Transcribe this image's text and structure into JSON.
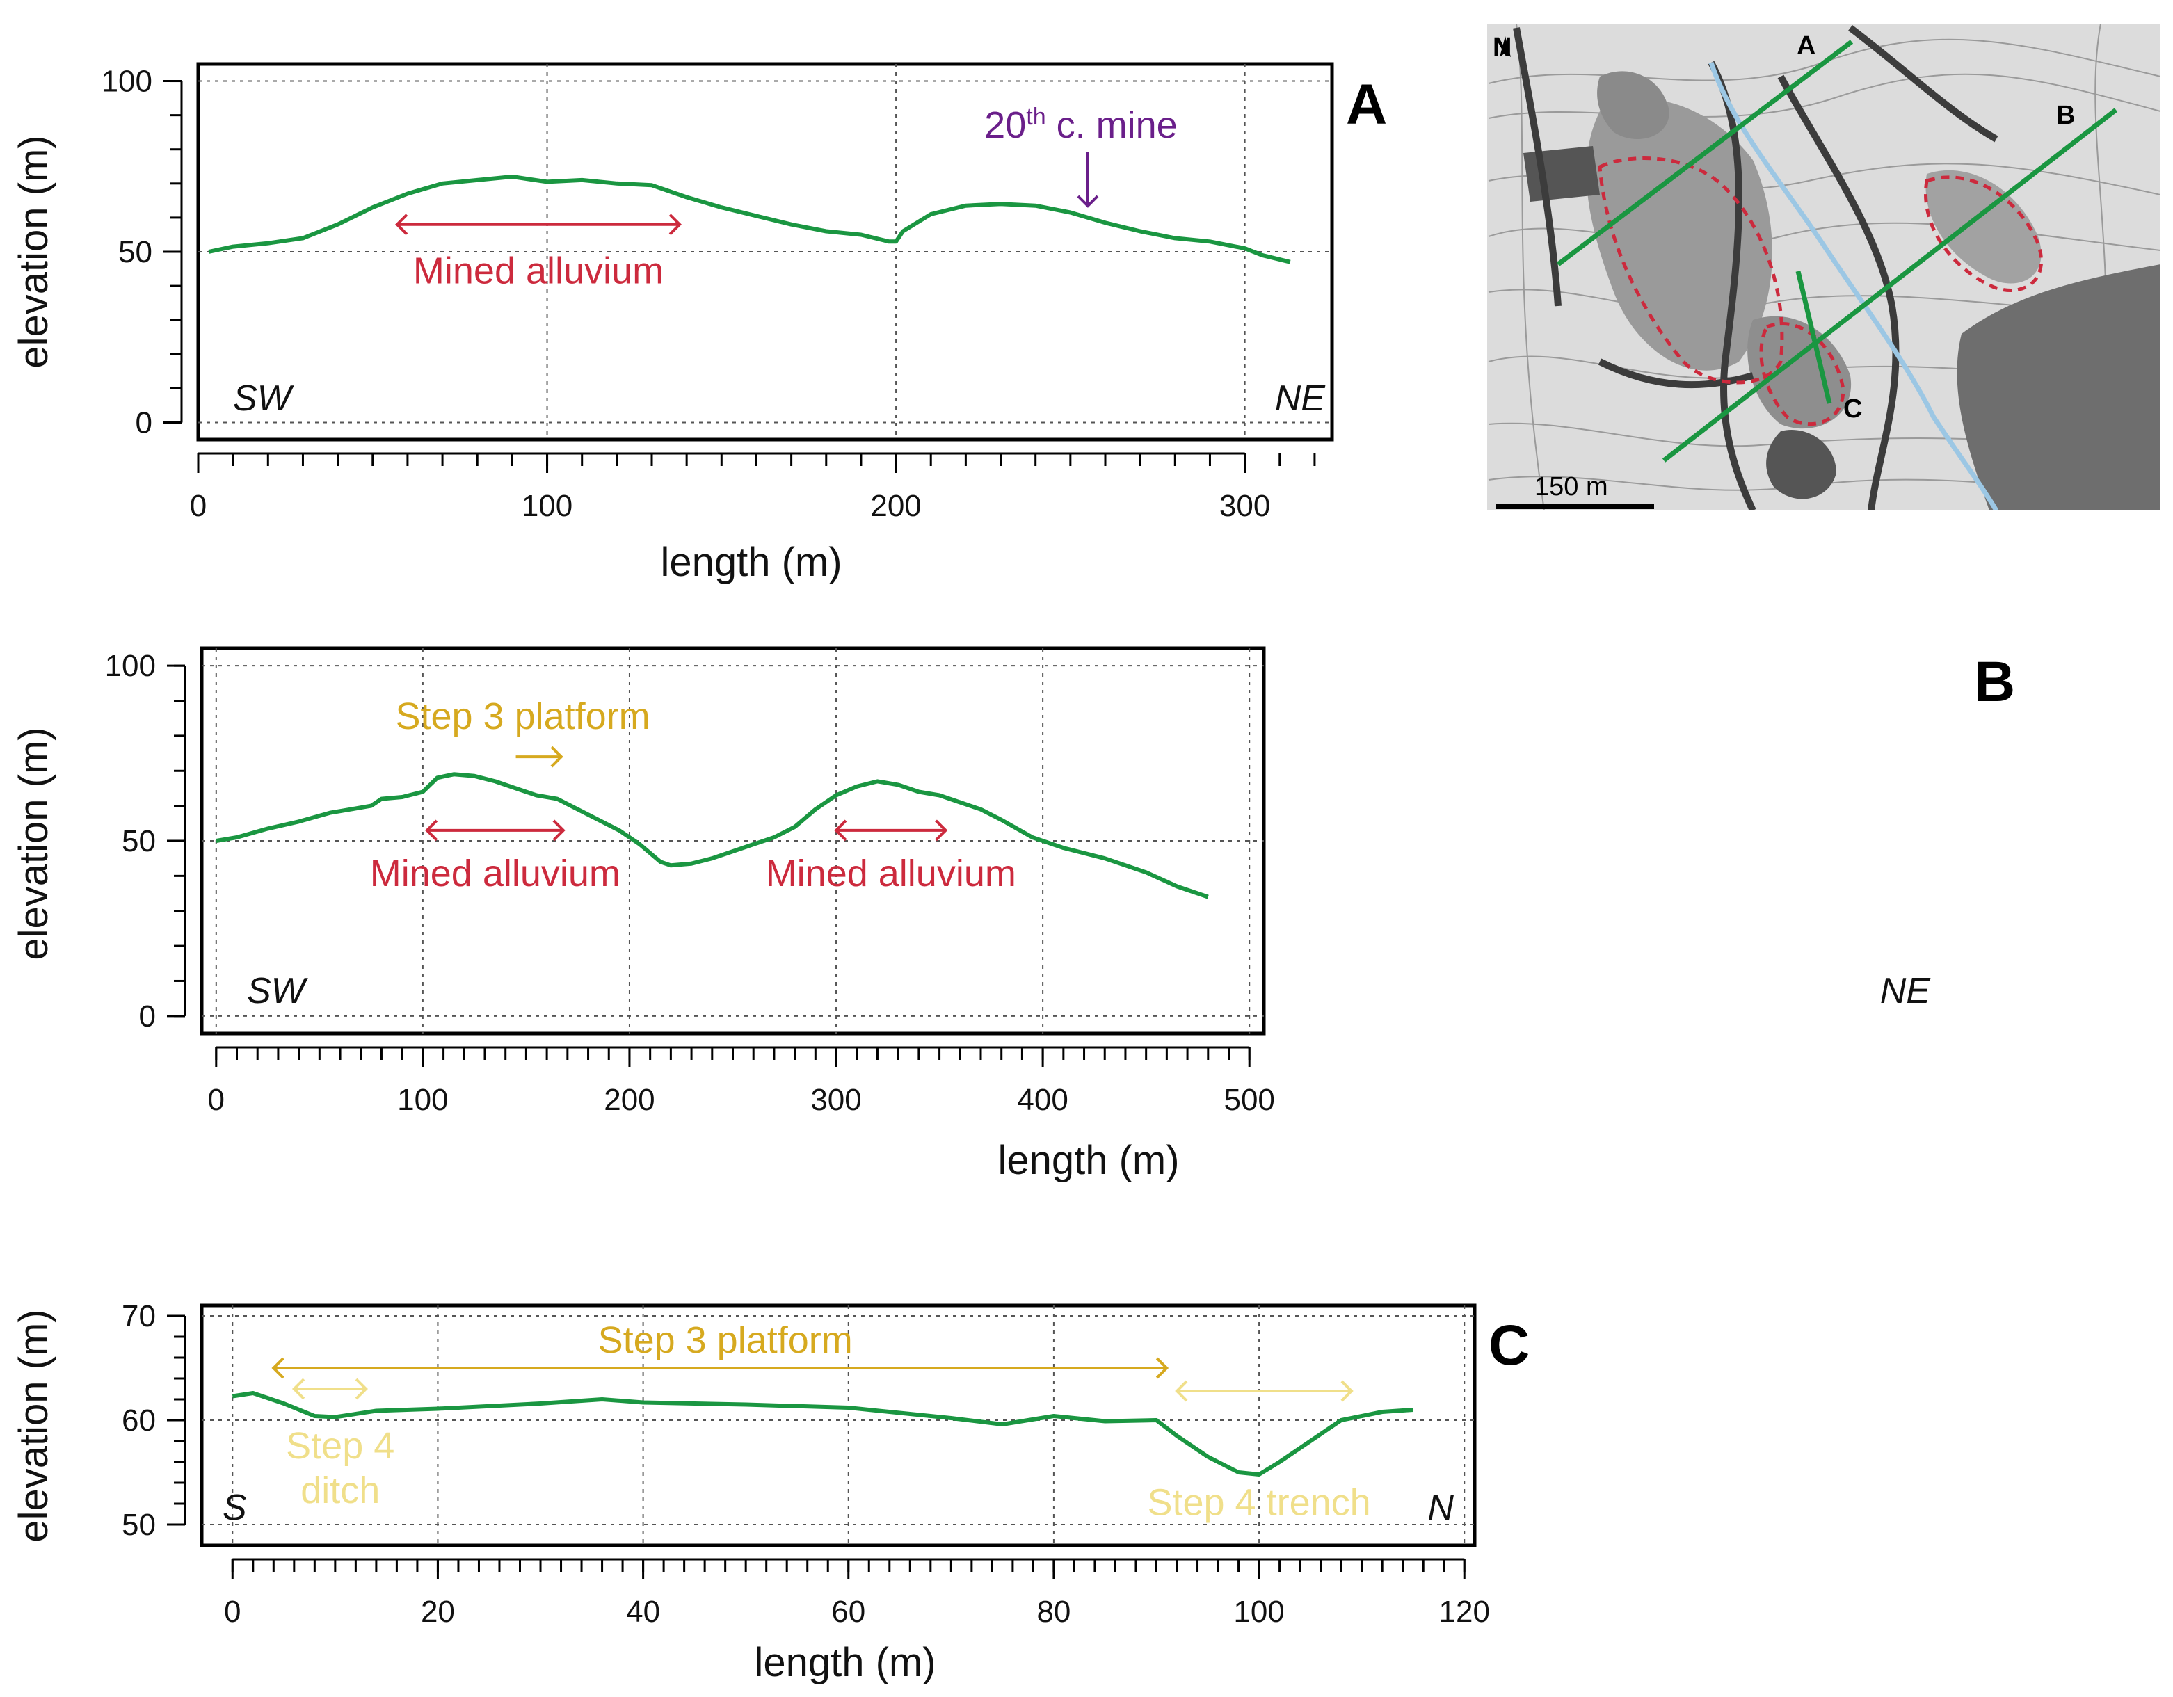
{
  "colors": {
    "profile": "#1a9641",
    "mined": "#cc2a3d",
    "step3": "#d6a91f",
    "step4": "#f0df8a",
    "mine20": "#6a1f8a",
    "river": "#9cc7e4"
  },
  "chart_data": [
    {
      "type": "line",
      "panel": "A",
      "xlabel": "length (m)",
      "ylabel": "elevation (m)",
      "xlim": [
        0,
        325
      ],
      "ylim": [
        -5,
        105
      ],
      "xticks": [
        0,
        100,
        200,
        300
      ],
      "yticks": [
        0,
        50,
        100
      ],
      "grid": true,
      "direction_left": "SW",
      "direction_right": "NE",
      "series": [
        {
          "x": [
            3,
            10,
            20,
            30,
            40,
            50,
            60,
            70,
            80,
            90,
            100,
            110,
            120,
            130,
            140,
            150,
            160,
            170,
            180,
            190,
            198,
            200,
            202,
            210,
            220,
            230,
            240,
            250,
            260,
            270,
            280,
            290,
            300,
            305,
            313
          ],
          "y": [
            50,
            51.5,
            52.5,
            54,
            58,
            63,
            67,
            70,
            71,
            72,
            70.5,
            71,
            70,
            69.5,
            66,
            63,
            60.5,
            58,
            56,
            55,
            53,
            53,
            56,
            61,
            63.5,
            64,
            63.5,
            61.5,
            58.5,
            56,
            54,
            53,
            51,
            49,
            47
          ]
        }
      ],
      "annotations": [
        {
          "text": "Mined alluvium",
          "x1": 57,
          "x2": 138,
          "y": 58
        },
        {
          "text_main": "20",
          "text_sup": "th",
          "text_rest": " c. mine",
          "x": 255,
          "y": 61
        }
      ]
    },
    {
      "type": "line",
      "panel": "B",
      "xlabel": "length (m)",
      "ylabel": "elevation (m)",
      "xlim": [
        -7,
        507
      ],
      "ylim": [
        -5,
        105
      ],
      "xticks": [
        0,
        100,
        200,
        300,
        400,
        500
      ],
      "yticks": [
        0,
        50,
        100
      ],
      "grid": true,
      "direction_left": "SW",
      "direction_right": "NE",
      "series": [
        {
          "x": [
            0,
            10,
            25,
            40,
            55,
            65,
            75,
            80,
            90,
            100,
            107,
            115,
            125,
            135,
            145,
            155,
            165,
            175,
            185,
            195,
            205,
            215,
            220,
            230,
            240,
            250,
            260,
            270,
            280,
            290,
            300,
            310,
            320,
            330,
            340,
            350,
            360,
            370,
            380,
            395,
            410,
            430,
            450,
            465,
            480
          ],
          "y": [
            50,
            51,
            53.5,
            55.5,
            58,
            59,
            60,
            62,
            62.5,
            64,
            68,
            69,
            68.5,
            67,
            65,
            63,
            62,
            59,
            56,
            53,
            49,
            44,
            43,
            43.5,
            45,
            47,
            49,
            51,
            54,
            59,
            63,
            65.5,
            67,
            66,
            64,
            63,
            61,
            59,
            56,
            51,
            48,
            45,
            41,
            37,
            34
          ]
        }
      ],
      "annotations": [
        {
          "text": "Mined alluvium",
          "x1": 102,
          "x2": 168,
          "y": 53
        },
        {
          "text": "Mined alluvium",
          "x1": 300,
          "x2": 353,
          "y": 53
        },
        {
          "text": "Step 3 platform",
          "x1": 145,
          "x2": 167,
          "y": 74
        }
      ]
    },
    {
      "type": "line",
      "panel": "C",
      "xlabel": "length (m)",
      "ylabel": "elevation (m)",
      "xlim": [
        -3,
        121
      ],
      "ylim": [
        48,
        71
      ],
      "xticks": [
        0,
        20,
        40,
        60,
        80,
        100,
        120
      ],
      "yticks": [
        50,
        60,
        70
      ],
      "grid": true,
      "direction_left": "S",
      "direction_right": "N",
      "series": [
        {
          "x": [
            0,
            2,
            5,
            8,
            10,
            14,
            20,
            30,
            36,
            40,
            50,
            60,
            65,
            70,
            75,
            80,
            85,
            90,
            92,
            95,
            98,
            100,
            102,
            105,
            108,
            112,
            115
          ],
          "y": [
            62.3,
            62.6,
            61.6,
            60.4,
            60.3,
            60.9,
            61.1,
            61.6,
            62,
            61.7,
            61.5,
            61.2,
            60.7,
            60.2,
            59.6,
            60.4,
            59.9,
            60,
            58.5,
            56.5,
            55,
            54.8,
            56,
            58,
            60,
            60.8,
            61
          ]
        }
      ],
      "annotations": [
        {
          "text": "Step 3 platform",
          "x1": 4,
          "x2": 91,
          "y": 65
        },
        {
          "text_line1": "Step 4",
          "text_line2": "ditch",
          "x1": 6,
          "x2": 13,
          "y": 63
        },
        {
          "text": "Step 4 trench",
          "x1": 92,
          "x2": 109,
          "y": 62.8
        }
      ]
    }
  ],
  "map": {
    "labels": [
      "A",
      "B",
      "C"
    ],
    "scale_label": "150 m",
    "north_label": "N"
  }
}
